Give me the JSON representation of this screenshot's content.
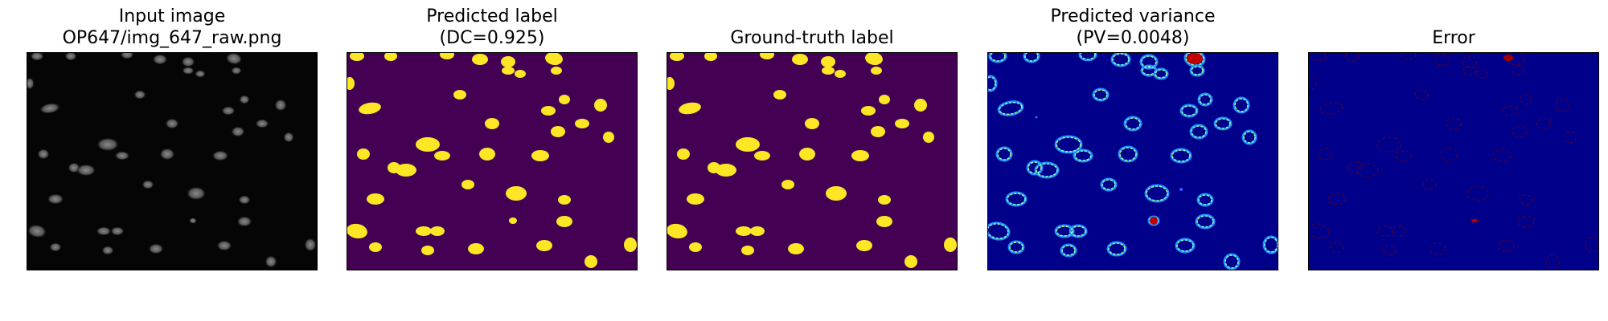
{
  "figure": {
    "panels": [
      {
        "id": "input",
        "title_lines": [
          "Input image",
          "OP647/img_647_raw.png"
        ],
        "colormap": "gray",
        "background": "#050505"
      },
      {
        "id": "pred_label",
        "title_lines": [
          "Predicted label",
          "(DC=0.925)"
        ],
        "colormap": "viridis-binary",
        "background": "#440154",
        "foreground": "#fde725"
      },
      {
        "id": "gt_label",
        "title_lines": [
          "",
          "Ground-truth label"
        ],
        "colormap": "viridis-binary",
        "background": "#440154",
        "foreground": "#fde725"
      },
      {
        "id": "pred_var",
        "title_lines": [
          "Predicted variance",
          "(PV=0.0048)"
        ],
        "colormap": "jet",
        "background": "#00008b"
      },
      {
        "id": "error",
        "title_lines": [
          "",
          "Error"
        ],
        "colormap": "jet",
        "background": "#00008b"
      }
    ]
  }
}
